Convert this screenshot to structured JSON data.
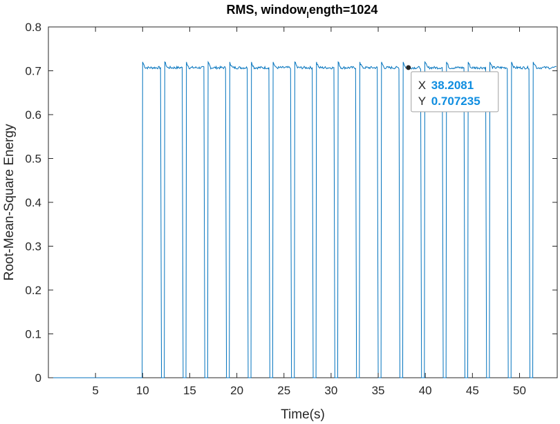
{
  "chart_data": {
    "type": "line",
    "title_main": "RMS, window",
    "title_sub": "l",
    "title_end": "ength=1024",
    "xlabel": "Time(s)",
    "ylabel": "Root-Mean-Square Energy",
    "xlim": [
      0,
      54
    ],
    "ylim": [
      0,
      0.8
    ],
    "xticks": [
      5,
      10,
      15,
      20,
      25,
      30,
      35,
      40,
      45,
      50
    ],
    "yticks": [
      0,
      0.1,
      0.2,
      0.3,
      0.4,
      0.5,
      0.6,
      0.7,
      0.8
    ],
    "xtick_labels": [
      "5",
      "10",
      "15",
      "20",
      "25",
      "30",
      "35",
      "40",
      "45",
      "50"
    ],
    "ytick_labels": [
      "0",
      "0.1",
      "0.2",
      "0.3",
      "0.4",
      "0.5",
      "0.6",
      "0.7",
      "0.8"
    ],
    "grid": false,
    "series": [
      {
        "color": "#0072bd",
        "high_level": 0.7071,
        "low_level": 0,
        "pulses": [
          [
            9.95,
            12.0
          ],
          [
            12.3,
            14.3
          ],
          [
            14.6,
            16.6
          ],
          [
            16.9,
            18.9
          ],
          [
            19.2,
            21.2
          ],
          [
            21.5,
            23.5
          ],
          [
            23.8,
            25.8
          ],
          [
            26.1,
            28.1
          ],
          [
            28.4,
            30.4
          ],
          [
            30.7,
            32.7
          ],
          [
            33.0,
            35.0
          ],
          [
            35.3,
            37.3
          ],
          [
            37.6,
            39.6
          ],
          [
            39.9,
            41.9
          ],
          [
            42.2,
            44.2
          ],
          [
            44.5,
            46.5
          ],
          [
            46.8,
            48.8
          ],
          [
            49.1,
            51.1
          ],
          [
            51.4,
            54.0
          ]
        ]
      }
    ],
    "datatip": {
      "x": 38.2081,
      "y": 0.707235,
      "x_key": "X",
      "y_key": "Y",
      "x_text": "38.2081",
      "y_text": "0.707235"
    }
  }
}
